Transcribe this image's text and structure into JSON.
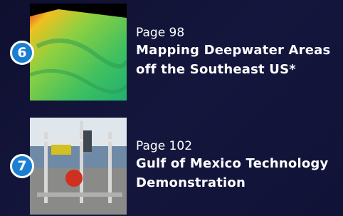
{
  "items": [
    {
      "number": "6",
      "page": "Page 98",
      "title_lines": [
        "Mapping Deepwater Areas",
        "off the Southeast US*"
      ]
    },
    {
      "number": "7",
      "page": "Page 102",
      "title_lines": [
        "Gulf of Mexico Technology",
        "Demonstration"
      ]
    }
  ]
}
